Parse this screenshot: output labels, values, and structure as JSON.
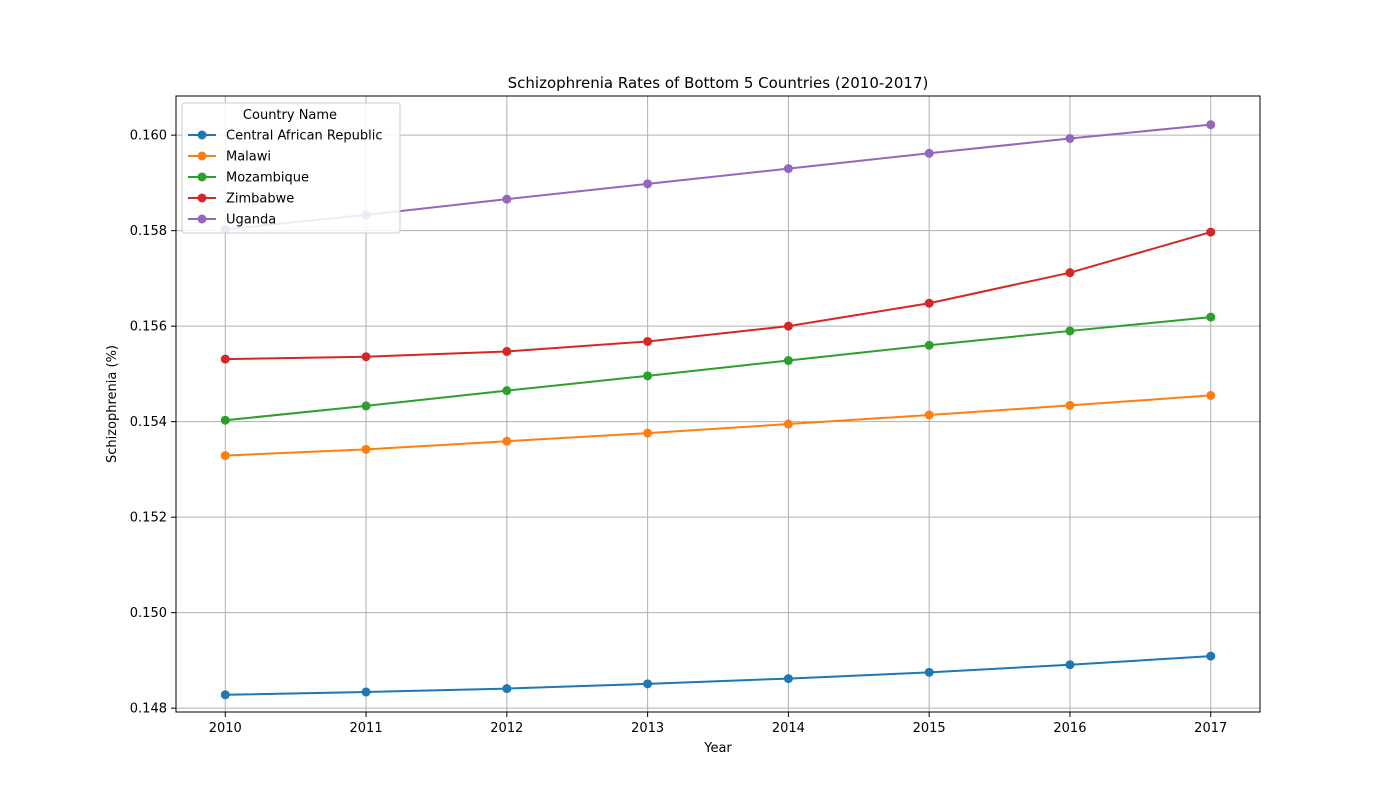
{
  "chart_data": {
    "type": "line",
    "title": "Schizophrenia Rates of Bottom 5 Countries (2010-2017)",
    "xlabel": "Year",
    "ylabel": "Schizophrenia (%)",
    "x": [
      2010,
      2011,
      2012,
      2013,
      2014,
      2015,
      2016,
      2017
    ],
    "x_tick_labels": [
      "2010",
      "2011",
      "2012",
      "2013",
      "2014",
      "2015",
      "2016",
      "2017"
    ],
    "xlim": [
      2009.65,
      2017.35
    ],
    "ylim": [
      0.14792,
      0.16082
    ],
    "y_ticks": [
      0.148,
      0.15,
      0.152,
      0.154,
      0.156,
      0.158,
      0.16
    ],
    "y_tick_labels": [
      "0.148",
      "0.150",
      "0.152",
      "0.154",
      "0.156",
      "0.158",
      "0.160"
    ],
    "grid": true,
    "legend": {
      "title": "Country Name",
      "placement": "top-left"
    },
    "series": [
      {
        "name": "Central African Republic",
        "color": "#1f77b4",
        "values": [
          0.14828,
          0.14834,
          0.14841,
          0.14851,
          0.14862,
          0.14875,
          0.14891,
          0.14909
        ]
      },
      {
        "name": "Malawi",
        "color": "#ff7f0e",
        "values": [
          0.15329,
          0.15342,
          0.15359,
          0.15376,
          0.15395,
          0.15414,
          0.15434,
          0.15455
        ]
      },
      {
        "name": "Mozambique",
        "color": "#2ca02c",
        "values": [
          0.15403,
          0.15433,
          0.15465,
          0.15496,
          0.15528,
          0.1556,
          0.1559,
          0.15619
        ]
      },
      {
        "name": "Zimbabwe",
        "color": "#d62728",
        "values": [
          0.15531,
          0.15536,
          0.15547,
          0.15568,
          0.156,
          0.15648,
          0.15712,
          0.15797
        ]
      },
      {
        "name": "Uganda",
        "color": "#9467bd",
        "values": [
          0.15803,
          0.15833,
          0.15866,
          0.15898,
          0.1593,
          0.15962,
          0.15993,
          0.16022
        ]
      }
    ]
  }
}
